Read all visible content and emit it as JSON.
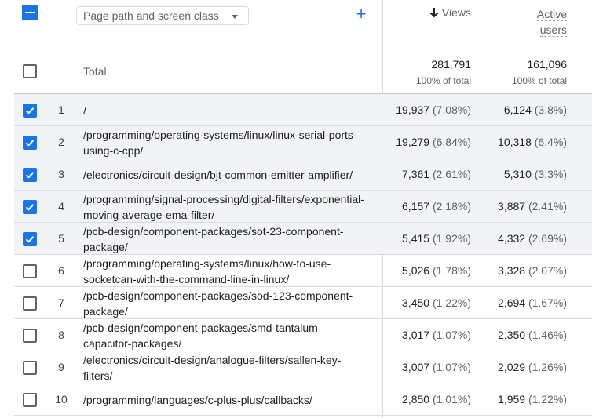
{
  "header": {
    "dimension_label": "Page path and screen class",
    "metric_views": "Views",
    "metric_users_line1": "Active",
    "metric_users_line2": "users"
  },
  "total": {
    "label": "Total",
    "views": "281,791",
    "views_sub": "100% of total",
    "users": "161,096",
    "users_sub": "100% of total"
  },
  "rows": [
    {
      "index": "1",
      "path": "/",
      "views": "19,937",
      "views_pct": "(7.08%)",
      "users": "6,124",
      "users_pct": "(3.8%)",
      "checked": true
    },
    {
      "index": "2",
      "path": "/programming/operating-systems/linux/linux-serial-ports-using-c-cpp/",
      "views": "19,279",
      "views_pct": "(6.84%)",
      "users": "10,318",
      "users_pct": "(6.4%)",
      "checked": true
    },
    {
      "index": "3",
      "path": "/electronics/circuit-design/bjt-common-emitter-amplifier/",
      "views": "7,361",
      "views_pct": "(2.61%)",
      "users": "5,310",
      "users_pct": "(3.3%)",
      "checked": true
    },
    {
      "index": "4",
      "path": "/programming/signal-processing/digital-filters/exponential-moving-average-ema-filter/",
      "views": "6,157",
      "views_pct": "(2.18%)",
      "users": "3,887",
      "users_pct": "(2.41%)",
      "checked": true
    },
    {
      "index": "5",
      "path": "/pcb-design/component-packages/sot-23-component-package/",
      "views": "5,415",
      "views_pct": "(1.92%)",
      "users": "4,332",
      "users_pct": "(2.69%)",
      "checked": true
    },
    {
      "index": "6",
      "path": "/programming/operating-systems/linux/how-to-use-socketcan-with-the-command-line-in-linux/",
      "views": "5,026",
      "views_pct": "(1.78%)",
      "users": "3,328",
      "users_pct": "(2.07%)",
      "checked": false
    },
    {
      "index": "7",
      "path": "/pcb-design/component-packages/sod-123-component-package/",
      "views": "3,450",
      "views_pct": "(1.22%)",
      "users": "2,694",
      "users_pct": "(1.67%)",
      "checked": false
    },
    {
      "index": "8",
      "path": "/pcb-design/component-packages/smd-tantalum-capacitor-packages/",
      "views": "3,017",
      "views_pct": "(1.07%)",
      "users": "2,350",
      "users_pct": "(1.46%)",
      "checked": false
    },
    {
      "index": "9",
      "path": "/electronics/circuit-design/analogue-filters/sallen-key-filters/",
      "views": "3,007",
      "views_pct": "(1.07%)",
      "users": "2,029",
      "users_pct": "(1.26%)",
      "checked": false
    },
    {
      "index": "10",
      "path": "/programming/languages/c-plus-plus/callbacks/",
      "views": "2,850",
      "views_pct": "(1.01%)",
      "users": "1,959",
      "users_pct": "(1.22%)",
      "checked": false
    }
  ],
  "colors": {
    "accent": "#1a73e8",
    "selected_row": "#f1f3f4"
  },
  "icons": {
    "add": "plus-icon",
    "sort": "arrow-down-icon",
    "dropdown": "caret-down-icon"
  }
}
